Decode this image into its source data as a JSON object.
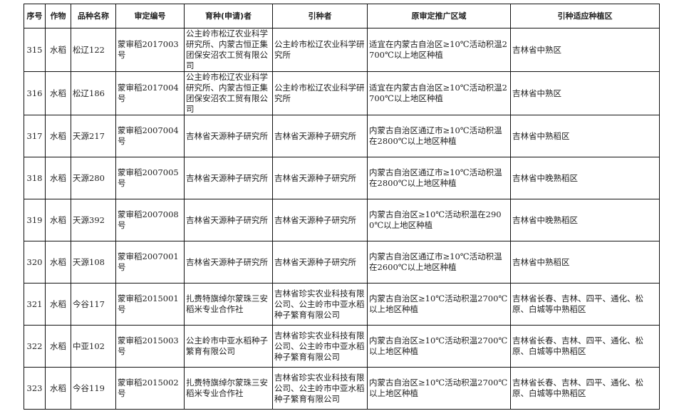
{
  "headers": [
    "序号",
    "作物",
    "品种名称",
    "审定编号",
    "育种(申请)者",
    "引种者",
    "原审定推广区域",
    "引种适应种植区"
  ],
  "rows": [
    [
      "315",
      "水稻",
      "松辽122",
      "蒙审稻2017003号",
      "公主岭市松辽农业科学研究所、内蒙古恒正集团保安沼农工贸有限公司",
      "公主岭市松辽农业科学研究所",
      "适宜在内蒙古自治区≥10℃活动积温2700℃以上地区种植",
      "吉林省中熟区"
    ],
    [
      "316",
      "水稻",
      "松辽186",
      "蒙审稻2017004号",
      "公主岭市松辽农业科学研究所、内蒙古恒正集团保安沼农工贸有限公司",
      "公主岭市松辽农业科学研究所",
      "适宜在内蒙古自治区≥10℃活动积温2700℃以上地区种植",
      "吉林省中熟区"
    ],
    [
      "317",
      "水稻",
      "天源217",
      "蒙审稻2007004号",
      "吉林省天源种子研究所",
      "吉林省天源种子研究所",
      "内蒙古自治区通辽市≥10℃活动积温在2800℃以上地区种植",
      "吉林省中熟稻区"
    ],
    [
      "318",
      "水稻",
      "天源280",
      "蒙审稻2007005号",
      "吉林省天源种子研究所",
      "吉林省天源种子研究所",
      "内蒙古自治区通辽市≥10℃活动积温在2800℃以上地区种植",
      "吉林省中晚熟稻区"
    ],
    [
      "319",
      "水稻",
      "天源392",
      "蒙审稻2007008号",
      "吉林省天源种子研究所",
      "吉林省天源种子研究所",
      "内蒙古自治区≥10℃活动积温在2900℃以上地区种植",
      "吉林省中晚熟稻区"
    ],
    [
      "320",
      "水稻",
      "天源108",
      "蒙审稻2007001号",
      "吉林省天源种子研究所",
      "吉林省天源种子研究所",
      "内蒙古自治区通辽市≥10℃活动积温在2600℃以上地区种植",
      "吉林省中熟稻区"
    ],
    [
      "321",
      "水稻",
      "今谷117",
      "蒙审稻2015001号",
      "扎赉特旗绰尔蒙珠三安稻米专业合作社",
      "吉林省珍实农业科技有限公司、公主岭市中亚水稻种子繁育有限公司",
      "内蒙古自治区≥10℃活动积温2700℃以上地区种植",
      "吉林省长春、吉林、四平、通化、松原、白城等中熟稻区"
    ],
    [
      "322",
      "水稻",
      "中亚102",
      "蒙审稻2015003号",
      "公主岭市中亚水稻种子繁育有限公司",
      "吉林省珍实农业科技有限公司、公主岭市中亚水稻种子繁育有限公司",
      "内蒙古自治区≥10℃活动积温2700℃以上地区种植",
      "吉林省长春、吉林、四平、通化、松原、白城等中熟稻区"
    ],
    [
      "323",
      "水稻",
      "今谷119",
      "蒙审稻2015002号",
      "扎赉特旗绰尔蒙珠三安稻米专业合作社",
      "吉林省珍实农业科技有限公司、公主岭市中亚水稻种子繁育有限公司",
      "内蒙古自治区≥10℃活动积温2700℃以上地区种植",
      "吉林省长春、吉林、四平、通化、松原、白城等中熟稻区"
    ]
  ]
}
